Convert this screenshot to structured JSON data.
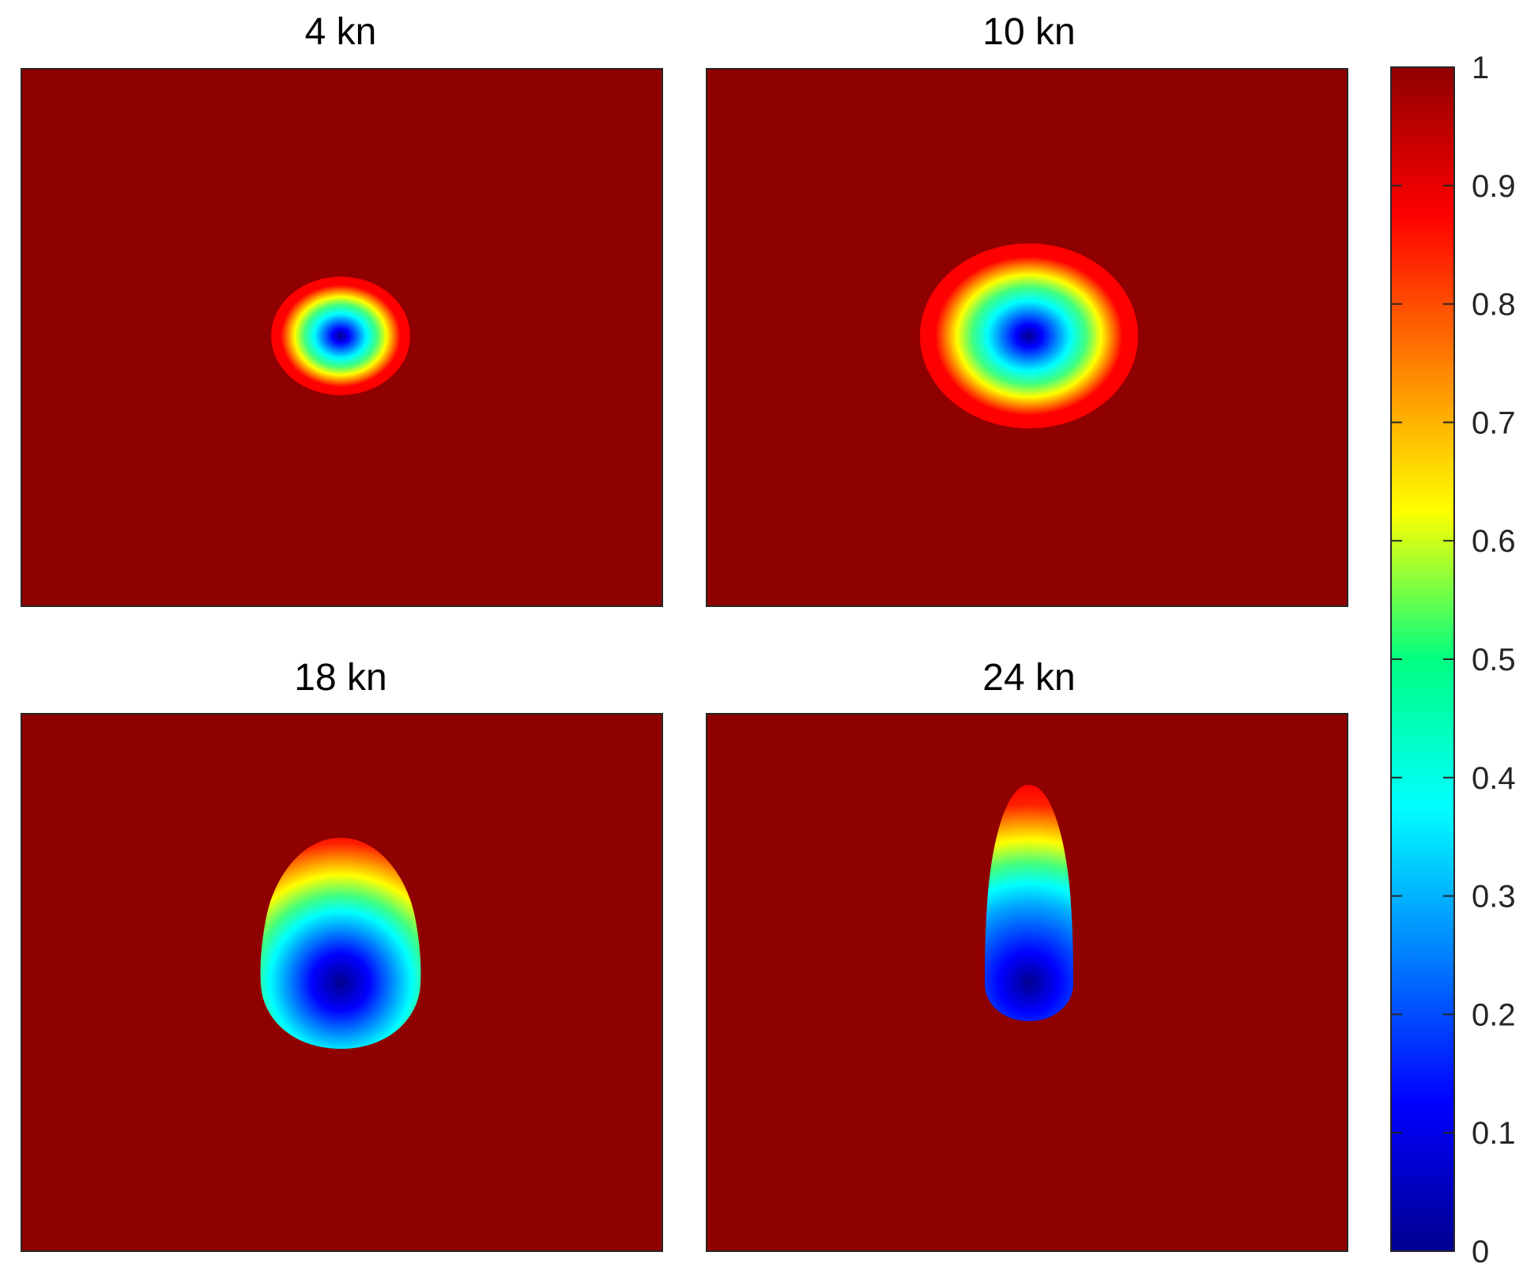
{
  "chart_data": {
    "type": "heatmap",
    "colormap": "jet",
    "background_value": 1,
    "panels": [
      {
        "title": "4 kn"
      },
      {
        "title": "10 kn"
      },
      {
        "title": "18 kn"
      },
      {
        "title": "24 kn"
      }
    ],
    "colorbar": {
      "range": [
        0,
        1
      ],
      "ticks": [
        0,
        0.1,
        0.2,
        0.3,
        0.4,
        0.5,
        0.6,
        0.7,
        0.8,
        0.9,
        1
      ],
      "tick_labels": [
        "0",
        "0.1",
        "0.2",
        "0.3",
        "0.4",
        "0.5",
        "0.6",
        "0.7",
        "0.8",
        "0.9",
        "1"
      ]
    },
    "grid": false,
    "axis_ticks": false
  }
}
